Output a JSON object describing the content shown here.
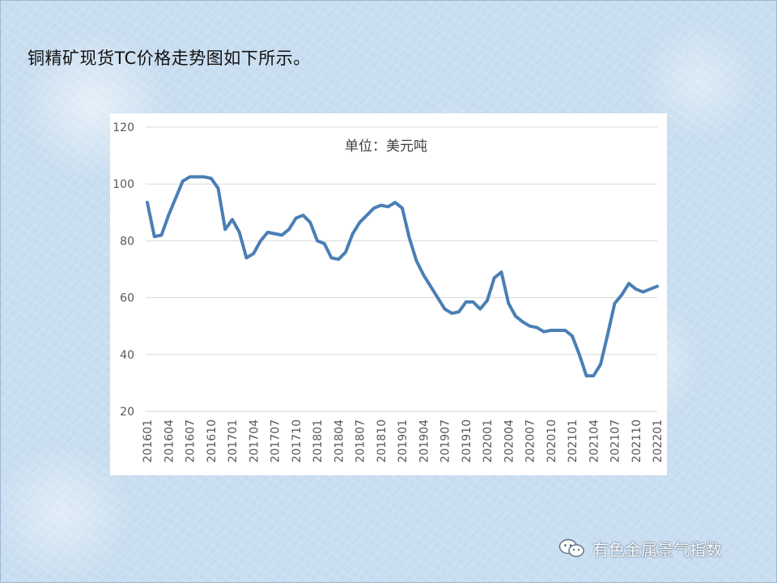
{
  "page": {
    "title": "铜精矿现货TC价格走势图如下所示。"
  },
  "watermark": {
    "icon": "wechat-icon",
    "text": "有色金属景气指数"
  },
  "colors": {
    "line": "#4a7fb5",
    "grid": "#d9d9d9",
    "axis_text": "#595959",
    "title_text": "#404040"
  },
  "chart_data": {
    "type": "line",
    "title": "单位：美元吨",
    "xlabel": "",
    "ylabel": "",
    "ylim": [
      20,
      120
    ],
    "yticks": [
      20,
      40,
      60,
      80,
      100,
      120
    ],
    "grid": true,
    "legend": "none",
    "tick_labels": [
      "201601",
      "201604",
      "201607",
      "201610",
      "201701",
      "201704",
      "201707",
      "201710",
      "201801",
      "201804",
      "201807",
      "201810",
      "201901",
      "201904",
      "201907",
      "201910",
      "202001",
      "202004",
      "202007",
      "202010",
      "202101",
      "202104",
      "202107",
      "202110",
      "202201"
    ],
    "x": [
      "201601",
      "201602",
      "201603",
      "201604",
      "201605",
      "201606",
      "201607",
      "201608",
      "201609",
      "201610",
      "201611",
      "201612",
      "201701",
      "201702",
      "201703",
      "201704",
      "201705",
      "201706",
      "201707",
      "201708",
      "201709",
      "201710",
      "201711",
      "201712",
      "201801",
      "201802",
      "201803",
      "201804",
      "201805",
      "201806",
      "201807",
      "201808",
      "201809",
      "201810",
      "201811",
      "201812",
      "201901",
      "201902",
      "201903",
      "201904",
      "201905",
      "201906",
      "201907",
      "201908",
      "201909",
      "201910",
      "201911",
      "201912",
      "202001",
      "202002",
      "202003",
      "202004",
      "202005",
      "202006",
      "202007",
      "202008",
      "202009",
      "202010",
      "202011",
      "202012",
      "202101",
      "202102",
      "202103",
      "202104",
      "202105",
      "202106",
      "202107",
      "202108",
      "202109",
      "202110",
      "202111",
      "202112",
      "202201"
    ],
    "series": [
      {
        "name": "",
        "values": [
          93.5,
          81.5,
          82,
          89,
          95,
          101,
          102.5,
          102.5,
          102.5,
          102,
          98.5,
          84,
          87.5,
          83,
          74,
          75.5,
          80,
          83,
          82.5,
          82,
          84,
          88,
          89,
          86.5,
          80,
          79,
          74,
          73.5,
          76,
          82.5,
          86.5,
          89,
          91.5,
          92.5,
          92,
          93.5,
          91.5,
          81,
          73,
          68,
          64,
          60,
          56,
          54.5,
          55,
          58.5,
          58.5,
          56,
          59,
          67,
          69,
          58,
          53.5,
          51.5,
          50,
          49.5,
          48,
          48.5,
          48.5,
          48.5,
          46.5,
          40,
          32.5,
          32.5,
          36.5,
          47,
          58,
          61,
          65,
          63,
          62,
          63,
          64
        ]
      }
    ]
  }
}
